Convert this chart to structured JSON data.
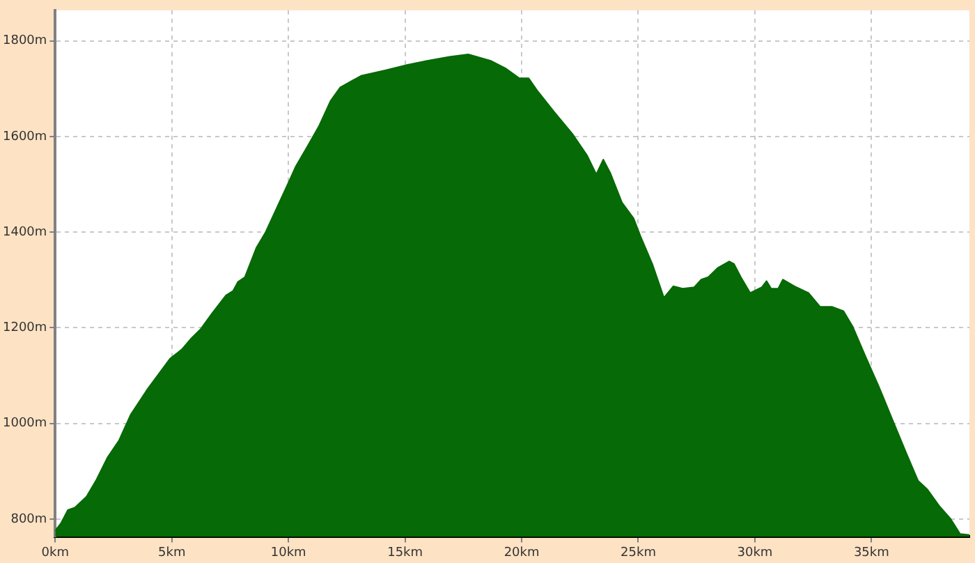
{
  "chart_data": {
    "type": "area",
    "x": [
      0,
      0.24,
      0.54,
      0.84,
      1.34,
      1.74,
      2.23,
      2.74,
      3.23,
      3.93,
      4.93,
      5.43,
      5.83,
      6.23,
      6.72,
      7.32,
      7.62,
      7.83,
      8.13,
      8.62,
      9.02,
      9.92,
      10.32,
      10.82,
      11.32,
      11.81,
      12.22,
      13.11,
      14.11,
      15.11,
      15.91,
      16.9,
      17.71,
      18.7,
      19.3,
      19.9,
      20.3,
      20.7,
      21.4,
      22.2,
      22.8,
      23.2,
      23.5,
      23.8,
      24.3,
      24.8,
      25.1,
      25.6,
      26.1,
      26.5,
      26.9,
      27.4,
      27.7,
      28.0,
      28.4,
      28.9,
      29.1,
      29.4,
      29.8,
      30.3,
      30.5,
      30.7,
      31.0,
      31.2,
      31.7,
      32.3,
      32.8,
      33.3,
      33.8,
      34.2,
      34.7,
      35.3,
      35.9,
      36.5,
      37.0,
      37.4,
      37.9,
      38.4,
      38.8,
      39.2
    ],
    "series": [
      {
        "color": "#066a06",
        "values": [
          776,
          791,
          819,
          824,
          847,
          880,
          928,
          965,
          1018,
          1070,
          1136,
          1155,
          1178,
          1197,
          1230,
          1268,
          1277,
          1296,
          1306,
          1367,
          1400,
          1495,
          1538,
          1580,
          1623,
          1675,
          1703,
          1727,
          1738,
          1750,
          1758,
          1767,
          1772,
          1758,
          1743,
          1722,
          1722,
          1694,
          1651,
          1604,
          1561,
          1521,
          1552,
          1524,
          1462,
          1429,
          1391,
          1334,
          1263,
          1287,
          1282,
          1285,
          1301,
          1306,
          1325,
          1339,
          1334,
          1306,
          1273,
          1285,
          1298,
          1282,
          1282,
          1301,
          1287,
          1273,
          1244,
          1244,
          1235,
          1202,
          1145,
          1079,
          1008,
          937,
          880,
          862,
          828,
          800,
          769,
          767
        ]
      }
    ],
    "xlim": [
      0,
      39.2
    ],
    "ylim": [
      763,
      1864
    ],
    "xticks": [
      {
        "value": 0,
        "label": "0km"
      },
      {
        "value": 5,
        "label": "5km"
      },
      {
        "value": 10,
        "label": "10km"
      },
      {
        "value": 15,
        "label": "15km"
      },
      {
        "value": 20,
        "label": "20km"
      },
      {
        "value": 25,
        "label": "25km"
      },
      {
        "value": 30,
        "label": "30km"
      },
      {
        "value": 35,
        "label": "35km"
      }
    ],
    "yticks": [
      {
        "value": 800,
        "label": "800m"
      },
      {
        "value": 1000,
        "label": "1000m"
      },
      {
        "value": 1200,
        "label": "1200m"
      },
      {
        "value": 1400,
        "label": "1400m"
      },
      {
        "value": 1600,
        "label": "1600m"
      },
      {
        "value": 1800,
        "label": "1800m"
      }
    ],
    "grid": true,
    "legend": false,
    "marker": "none",
    "line_style": "solid"
  }
}
